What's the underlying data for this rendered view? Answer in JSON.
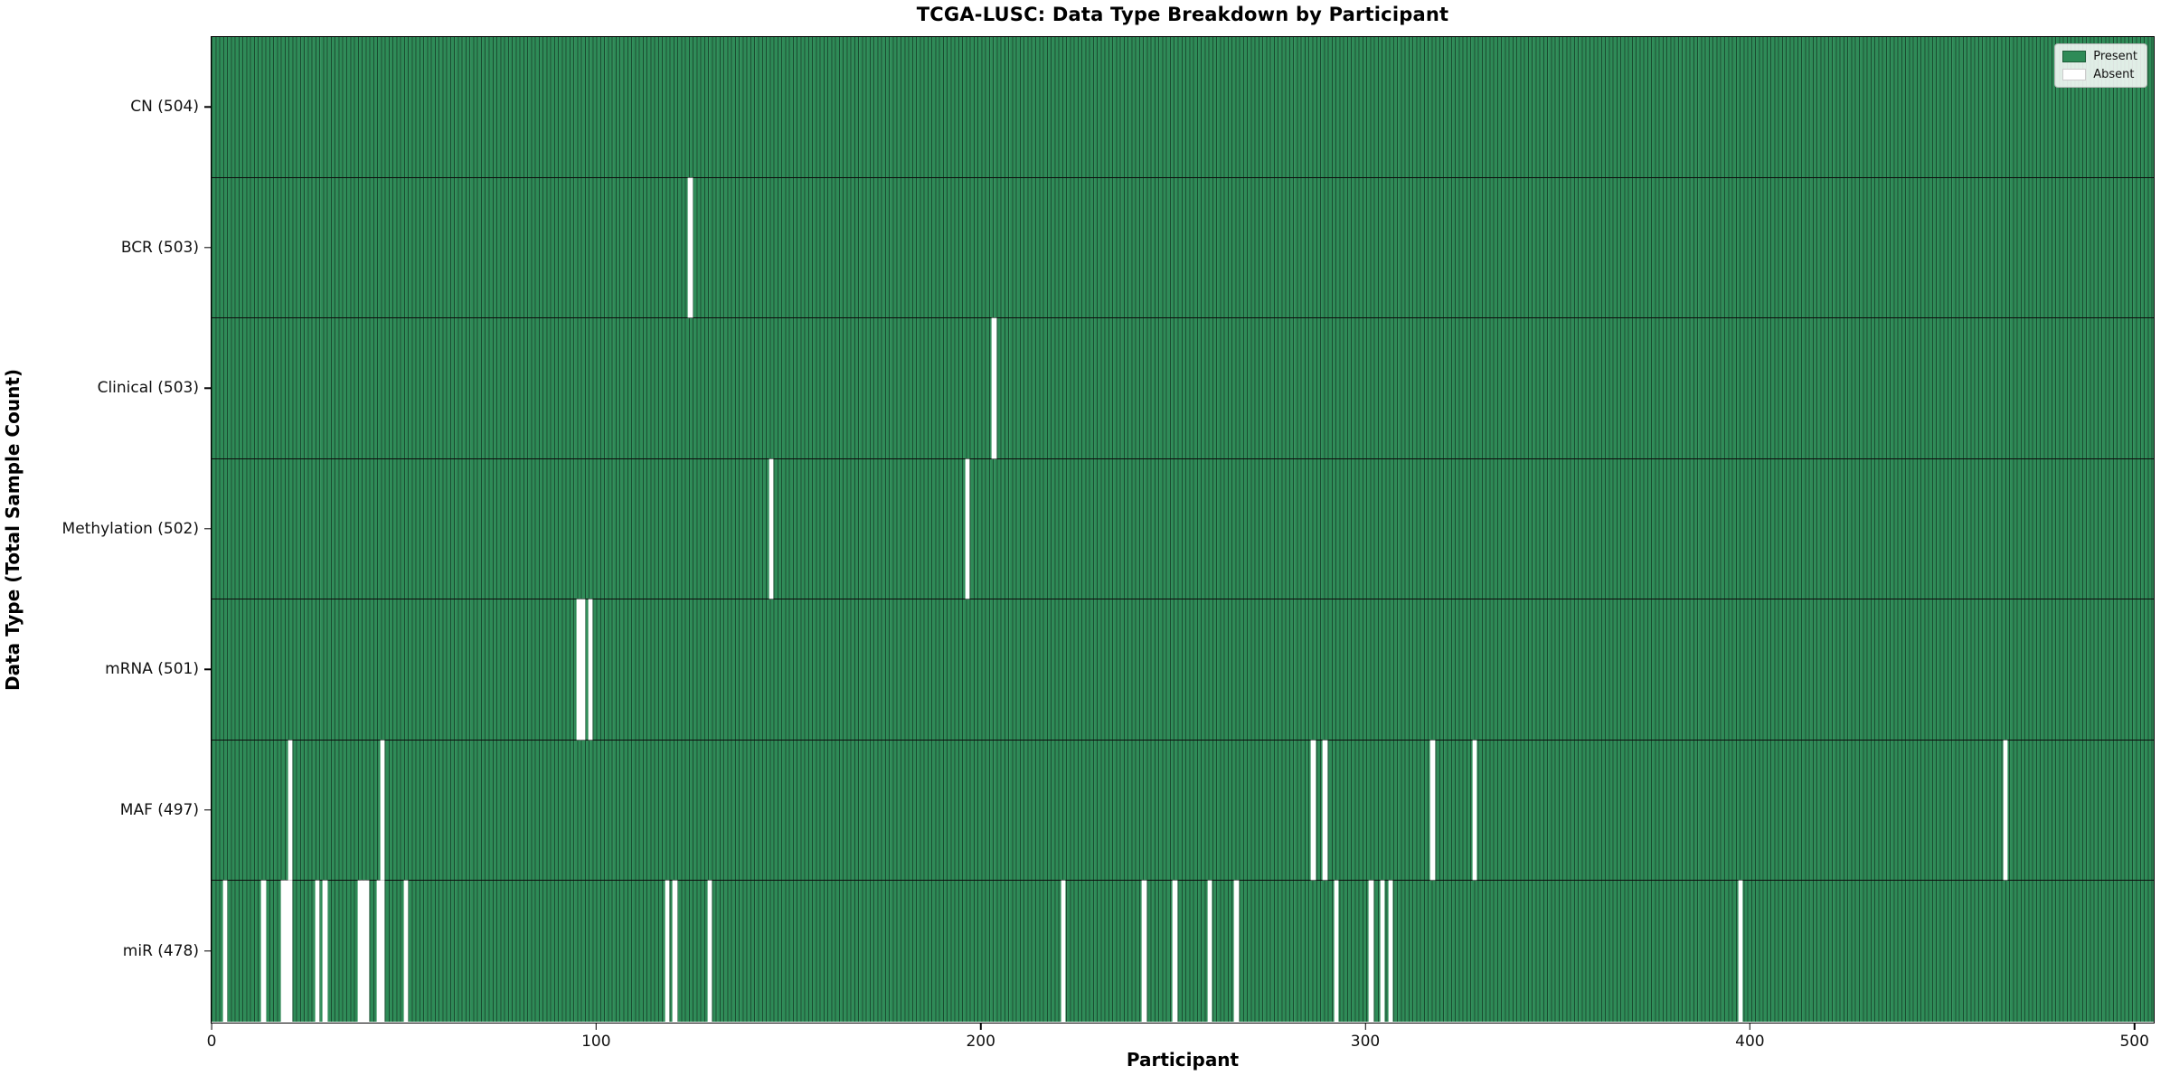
{
  "title": "TCGA-LUSC: Data Type Breakdown by Participant",
  "axes": {
    "xlabel": "Participant",
    "ylabel": "Data Type (Total Sample Count)"
  },
  "legend": {
    "present_label": "Present",
    "absent_label": "Absent"
  },
  "colors": {
    "present": "#2e8b57",
    "absent": "#ffffff",
    "bar_edge": "#1a4d33",
    "row_divider": "#0d0d0d"
  },
  "chart_data": {
    "type": "heatmap",
    "title": "TCGA-LUSC: Data Type Breakdown by Participant",
    "xlabel": "Participant",
    "ylabel": "Data Type (Total Sample Count)",
    "x_ticks": [
      0,
      100,
      200,
      300,
      400,
      500
    ],
    "xlim": [
      0,
      505
    ],
    "n_participants": 504,
    "grid": false,
    "legend_position": "upper right",
    "legend_entries": [
      "Present",
      "Absent"
    ],
    "rows": [
      {
        "data_type": "CN",
        "label": "CN (504)",
        "present_count": 504,
        "absent_participants": []
      },
      {
        "data_type": "BCR",
        "label": "BCR (503)",
        "present_count": 503,
        "absent_participants": [
          124
        ]
      },
      {
        "data_type": "Clinical",
        "label": "Clinical (503)",
        "present_count": 503,
        "absent_participants": [
          203
        ]
      },
      {
        "data_type": "Methylation",
        "label": "Methylation (502)",
        "present_count": 502,
        "absent_participants": [
          145,
          196
        ]
      },
      {
        "data_type": "mRNA",
        "label": "mRNA (501)",
        "present_count": 501,
        "absent_participants": [
          95,
          96,
          98
        ]
      },
      {
        "data_type": "MAF",
        "label": "MAF (497)",
        "present_count": 497,
        "absent_participants": [
          20,
          44,
          286,
          289,
          317,
          328,
          466
        ]
      },
      {
        "data_type": "miR",
        "label": "miR (478)",
        "present_count": 478,
        "absent_participants": [
          3,
          13,
          18,
          19,
          20,
          27,
          29,
          38,
          39,
          40,
          43,
          44,
          50,
          118,
          120,
          129,
          221,
          242,
          250,
          259,
          266,
          292,
          301,
          304,
          306,
          397
        ]
      }
    ]
  }
}
